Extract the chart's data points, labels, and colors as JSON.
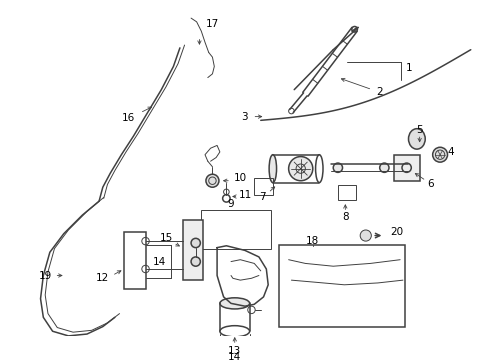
{
  "bg_color": "#ffffff",
  "line_color": "#404040",
  "fig_width": 4.89,
  "fig_height": 3.6,
  "dpi": 100,
  "label_fs": 7.5,
  "lw_thin": 0.7,
  "lw_med": 1.1,
  "lw_thick": 1.8
}
